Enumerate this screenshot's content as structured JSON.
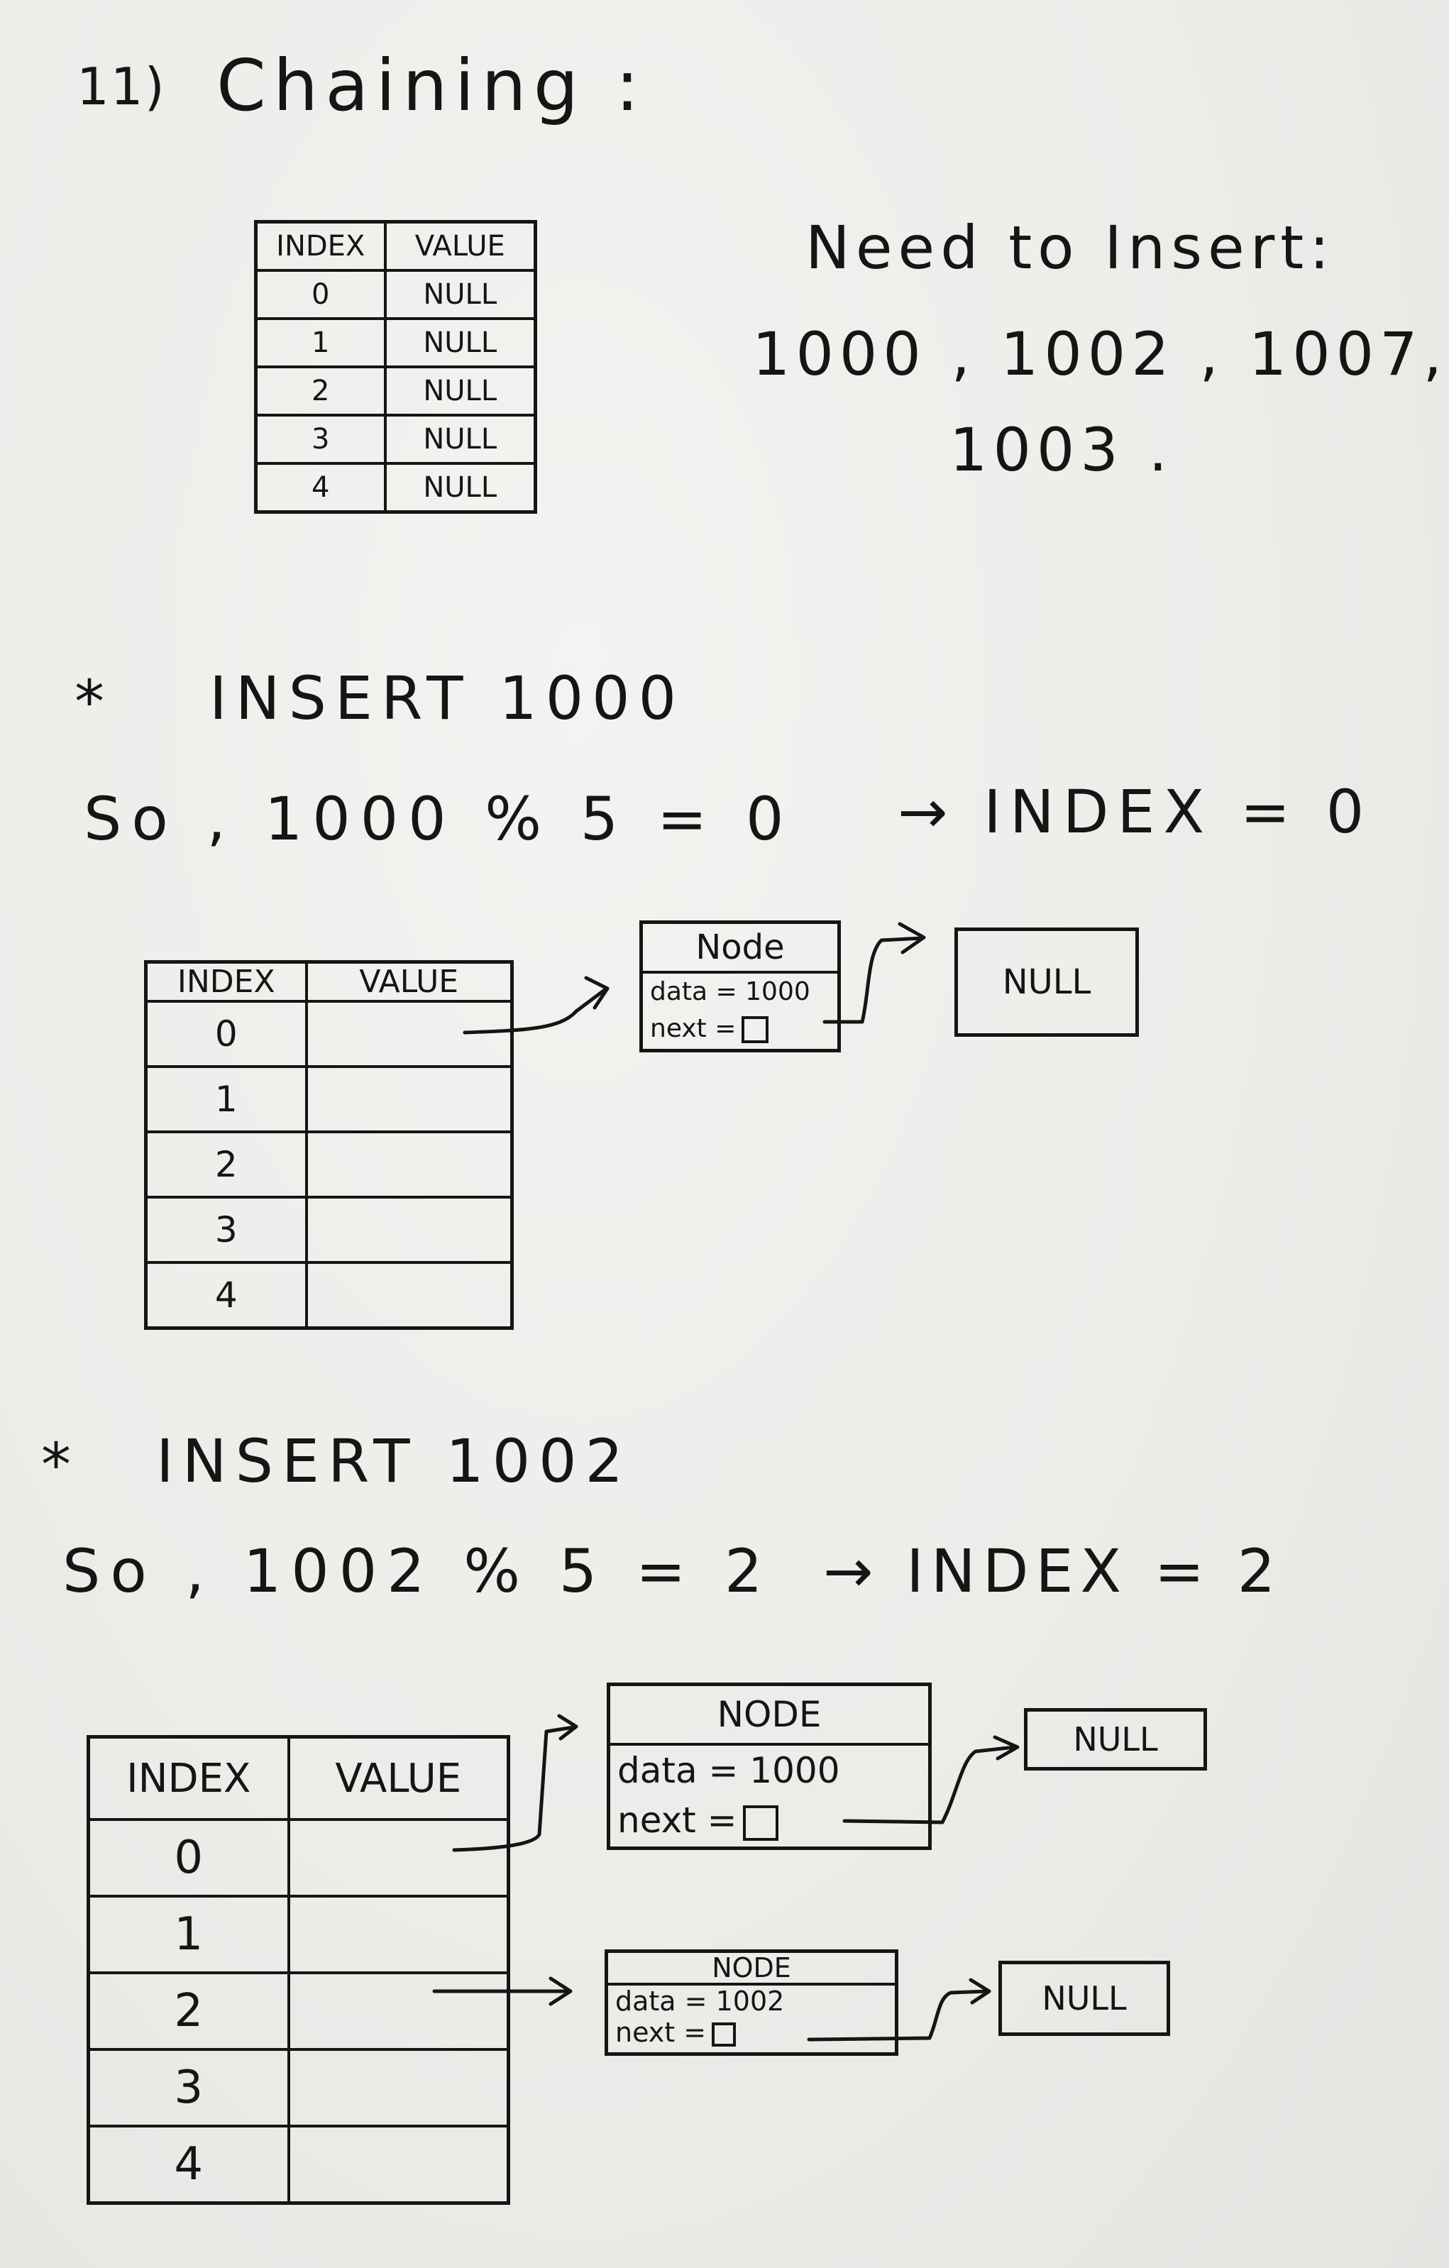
{
  "heading": {
    "number": "11)",
    "title": "Chaining :"
  },
  "need": {
    "title": "Need to Insert:",
    "line1": "1000 , 1002 , 1007,",
    "line2": "1003 ."
  },
  "table_initial": {
    "headers": [
      "INDEX",
      "VALUE"
    ],
    "rows": [
      {
        "index": "0",
        "value": "NULL"
      },
      {
        "index": "1",
        "value": "NULL"
      },
      {
        "index": "2",
        "value": "NULL"
      },
      {
        "index": "3",
        "value": "NULL"
      },
      {
        "index": "4",
        "value": "NULL"
      }
    ]
  },
  "step1": {
    "bullet": "*",
    "title": "INSERT 1000",
    "calc": "So , 1000 % 5 = 0",
    "result": "→ INDEX = 0",
    "table": {
      "headers": [
        "INDEX",
        "VALUE"
      ],
      "rows": [
        "0",
        "1",
        "2",
        "3",
        "4"
      ]
    },
    "node": {
      "header": "Node",
      "data": "data = 1000",
      "next": "next ="
    },
    "null_label": "NULL"
  },
  "step2": {
    "bullet": "*",
    "title": "INSERT 1002",
    "calc": "So , 1002 % 5 = 2",
    "result": "→ INDEX = 2",
    "table": {
      "headers": [
        "INDEX",
        "VALUE"
      ],
      "rows": [
        "0",
        "1",
        "2",
        "3",
        "4"
      ]
    },
    "node_a": {
      "header": "NODE",
      "data": "data = 1000",
      "next": "next ="
    },
    "node_b": {
      "header": "NODE",
      "data": "data = 1002",
      "next": "next ="
    },
    "null_label_a": "NULL",
    "null_label_b": "NULL"
  }
}
